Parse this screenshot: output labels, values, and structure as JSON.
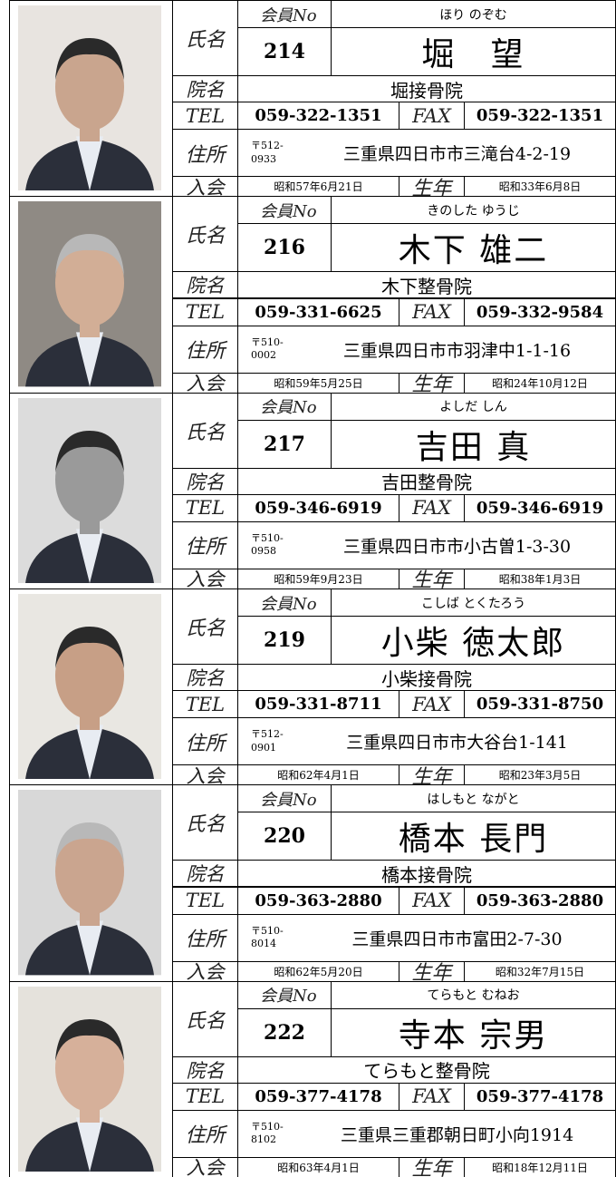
{
  "labels": {
    "name": "氏名",
    "member_no": "会員No",
    "clinic": "院名",
    "tel": "TEL",
    "fax": "FAX",
    "address": "住所",
    "joined": "入会",
    "born": "生年"
  },
  "records": [
    {
      "no": "214",
      "reading": "ほり のぞむ",
      "name": "堀　望",
      "clinic": "堀接骨院",
      "tel": "059-322-1351",
      "fax": "059-322-1351",
      "postal": [
        "〒512-",
        "0933"
      ],
      "address": "三重県四日市市三滝台4-2-19",
      "joined": "昭和57年6月21日",
      "born": "昭和33年6月8日"
    },
    {
      "no": "216",
      "reading": "きのした ゆうじ",
      "name": "木下 雄二",
      "clinic": "木下整骨院",
      "tel": "059-331-6625",
      "fax": "059-332-9584",
      "postal": [
        "〒510-",
        "0002"
      ],
      "address": "三重県四日市市羽津中1-1-16",
      "joined": "昭和59年5月25日",
      "born": "昭和24年10月12日"
    },
    {
      "no": "217",
      "reading": "よしだ しん",
      "name": "吉田 真",
      "clinic": "吉田整骨院",
      "tel": "059-346-6919",
      "fax": "059-346-6919",
      "postal": [
        "〒510-",
        "0958"
      ],
      "address": "三重県四日市市小古曽1-3-30",
      "joined": "昭和59年9月23日",
      "born": "昭和38年1月3日"
    },
    {
      "no": "219",
      "reading": "こしば とくたろう",
      "name": "小柴 徳太郎",
      "clinic": "小柴接骨院",
      "tel": "059-331-8711",
      "fax": "059-331-8750",
      "postal": [
        "〒512-",
        "0901"
      ],
      "address": "三重県四日市市大谷台1-141",
      "joined": "昭和62年4月1日",
      "born": "昭和23年3月5日"
    },
    {
      "no": "220",
      "reading": "はしもと ながと",
      "name": "橋本 長門",
      "clinic": "橋本接骨院",
      "tel": "059-363-2880",
      "fax": "059-363-2880",
      "postal": [
        "〒510-",
        "8014"
      ],
      "address": "三重県四日市市富田2-7-30",
      "joined": "昭和62年5月20日",
      "born": "昭和32年7月15日"
    },
    {
      "no": "222",
      "reading": "てらもと むねお",
      "name": "寺本 宗男",
      "clinic": "てらもと整骨院",
      "tel": "059-377-4178",
      "fax": "059-377-4178",
      "postal": [
        "〒510-",
        "8102"
      ],
      "address": "三重県三重郡朝日町小向1914",
      "joined": "昭和63年4月1日",
      "born": "昭和18年12月11日"
    }
  ]
}
